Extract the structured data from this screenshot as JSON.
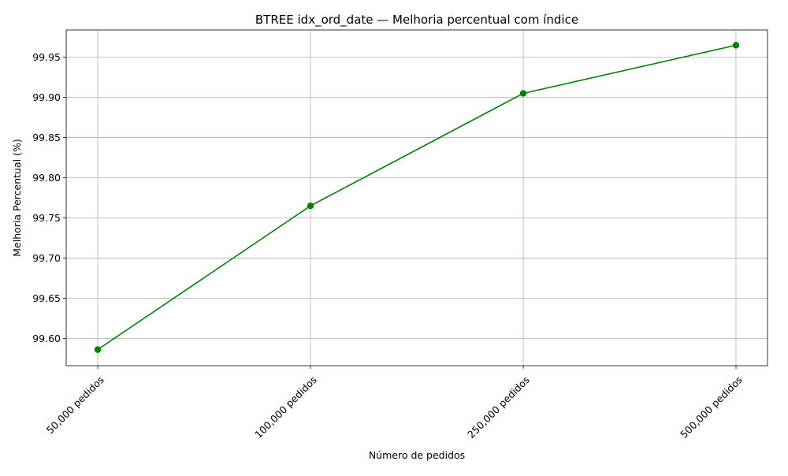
{
  "chart_data": {
    "type": "line",
    "title": "BTREE idx_ord_date — Melhoria percentual com índice",
    "xlabel": "Número de pedidos",
    "ylabel": "Melhoria Percentual (%)",
    "categories": [
      "50,000 pedidos",
      "100,000 pedidos",
      "250,000 pedidos",
      "500,000 pedidos"
    ],
    "series": [
      {
        "values": [
          99.586,
          99.765,
          99.905,
          99.965
        ],
        "color": "#008000",
        "marker": "circle"
      }
    ],
    "ylim": [
      99.566,
      99.984
    ],
    "yticks": [
      99.6,
      99.65,
      99.7,
      99.75,
      99.8,
      99.85,
      99.9,
      99.95
    ],
    "ytick_labels": [
      "99.60",
      "99.65",
      "99.70",
      "99.75",
      "99.80",
      "99.85",
      "99.90",
      "99.95"
    ],
    "grid": true,
    "legend": "none",
    "xtick_rotation": 45
  }
}
